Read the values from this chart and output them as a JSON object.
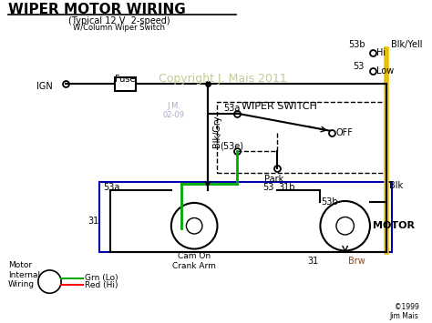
{
  "title": "WIPER MOTOR WIRING",
  "subtitle1": "(Typical 12 V  2-speed)",
  "subtitle2": "W/Column Wiper Switch",
  "copyright": "Copyright J. Mais 2011",
  "jm_text": "J.M.\n02-09",
  "credit": "©1999\nJim Mais",
  "bg_color": "#ffffff",
  "wire_black": "#000000",
  "wire_yellow": "#e8c000",
  "wire_green": "#00aa00",
  "wire_blue": "#0000cc",
  "box_outline": "#0000aa",
  "title_color": "#000000",
  "copyright_color": "#c8c896",
  "fuse": "Fuse",
  "ign": "IGN",
  "blk_gry": "Blk/Gry",
  "53a_top": "53a",
  "53b_toplabel": "53b",
  "blk_yell": "Blk/Yell",
  "53label": "53",
  "hi": "Hi",
  "low": "Low",
  "off": "OFF",
  "53e": "(53e)",
  "park": "Park",
  "wiper_switch": "WIPER SWITCH",
  "53a_left": "53a",
  "31left": "31",
  "31b": "31b",
  "53right": "53",
  "53bright": "53b",
  "blk": "Blk",
  "motor": "MOTOR",
  "cam_on": "Cam On\nCrank Arm",
  "31bottom": "31",
  "brw": "Brw",
  "motor_internal": "Motor\nInternal\nWiring",
  "grn_lo": "Grn (Lo)",
  "red_hi": "Red (Hi)"
}
